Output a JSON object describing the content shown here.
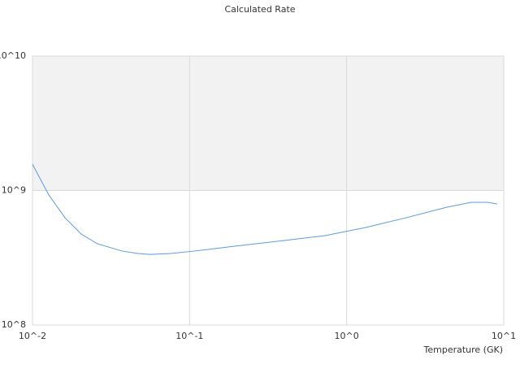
{
  "chart_data": {
    "type": "line",
    "title": "Calculated Rate",
    "x_label": "Temperature (GK)",
    "x_scale": "log",
    "y_scale": "log",
    "grid": true,
    "xlim": [
      0.01,
      10
    ],
    "ylim": [
      100000000,
      10000000000
    ],
    "xticks": [
      {
        "value": 0.01,
        "label": "10^-2"
      },
      {
        "value": 0.1,
        "label": "10^-1"
      },
      {
        "value": 1,
        "label": "10^0"
      },
      {
        "value": 10,
        "label": "10^1"
      }
    ],
    "yticks": [
      {
        "value": 100000000,
        "label": "10^8"
      },
      {
        "value": 1000000000,
        "label": "10^9"
      },
      {
        "value": 10000000000,
        "label": "10^10"
      }
    ],
    "series": [
      {
        "color": "#5b9be0",
        "x": [
          0.01,
          0.0127,
          0.0161,
          0.0204,
          0.0259,
          0.0371,
          0.047,
          0.0562,
          0.0757,
          0.108,
          0.196,
          0.401,
          0.728,
          1.32,
          2.4,
          4.35,
          6.21,
          7.88,
          9.1
        ],
        "values": [
          1570000000,
          927000000,
          628000000,
          475000000,
          402000000,
          355000000,
          340000000,
          335000000,
          340000000,
          355000000,
          386000000,
          425000000,
          462000000,
          531000000,
          628000000,
          752000000,
          817000000,
          817000000,
          794000000
        ]
      }
    ]
  }
}
